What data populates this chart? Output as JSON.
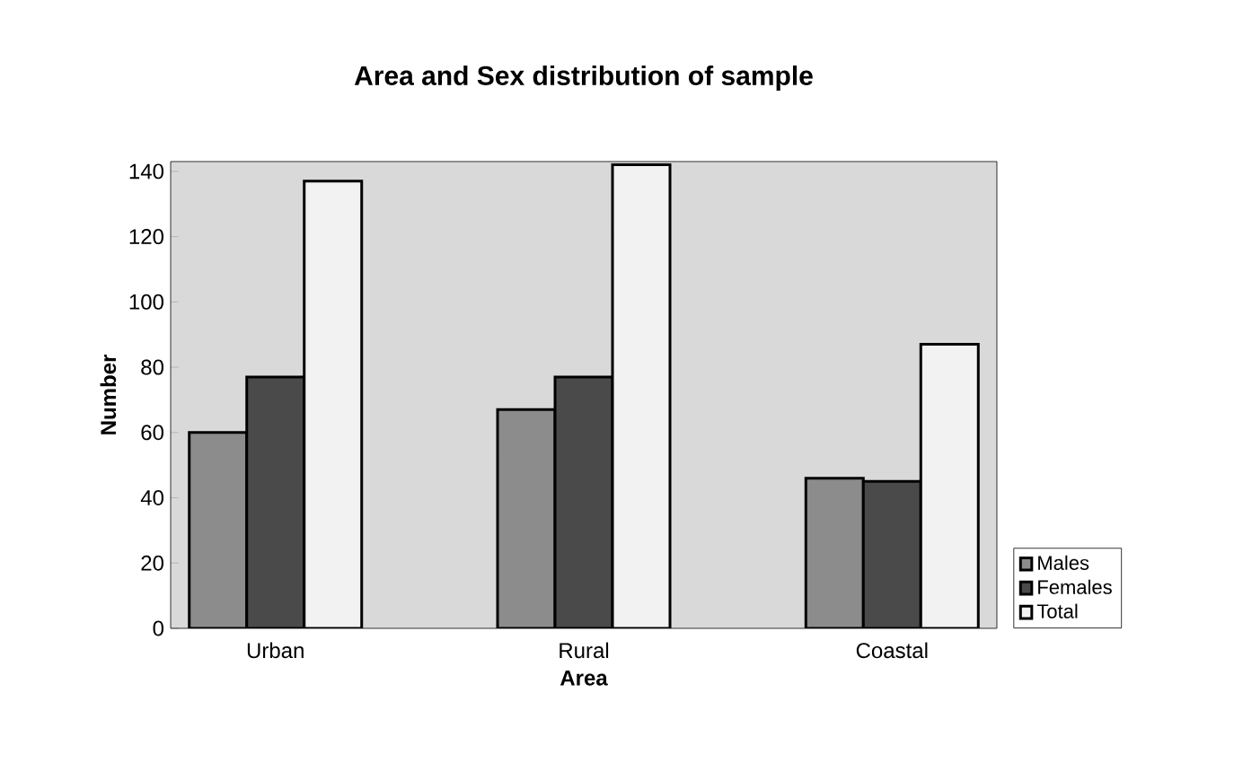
{
  "chart_data": {
    "type": "bar",
    "title": "Area and Sex distribution of sample",
    "xlabel": "Area",
    "ylabel": "Number",
    "categories": [
      "Urban",
      "Rural",
      "Coastal"
    ],
    "series": [
      {
        "name": "Males",
        "color": "#8c8c8c",
        "values": [
          60,
          67,
          46
        ]
      },
      {
        "name": "Females",
        "color": "#4a4a4a",
        "values": [
          77,
          77,
          45
        ]
      },
      {
        "name": "Total",
        "color": "#f2f2f2",
        "values": [
          137,
          142,
          87
        ]
      }
    ],
    "ylim": [
      0,
      143
    ],
    "yticks": [
      0,
      20,
      40,
      60,
      80,
      100,
      120,
      140
    ],
    "grid": false,
    "legend": "bottom right"
  }
}
